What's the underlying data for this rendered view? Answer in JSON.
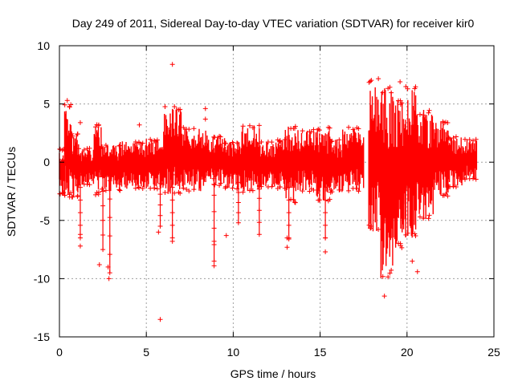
{
  "chart_data": {
    "type": "scatter",
    "title": "Day 249 of 2011, Sidereal Day-to-day VTEC variation (SDTVAR) for receiver kir0",
    "xlabel": "GPS time / hours",
    "ylabel": "SDTVAR / TECUs",
    "xlim": [
      0,
      25
    ],
    "ylim": [
      -15,
      10
    ],
    "xticks": [
      0,
      5,
      10,
      15,
      20,
      25
    ],
    "yticks": [
      -15,
      -10,
      -5,
      0,
      5,
      10
    ],
    "grid": true,
    "marker": "+",
    "color": "#ff0000",
    "series": [
      {
        "name": "SDTVAR",
        "bands": [
          {
            "x": [
              0.0,
              0.3
            ],
            "y": [
              -2.8,
              1.2
            ]
          },
          {
            "x": [
              0.3,
              0.7
            ],
            "y": [
              -3.0,
              5.0
            ]
          },
          {
            "x": [
              0.7,
              1.1
            ],
            "y": [
              -3.0,
              2.5
            ]
          },
          {
            "x": [
              1.1,
              2.0
            ],
            "y": [
              -2.0,
              1.2
            ]
          },
          {
            "x": [
              2.0,
              2.4
            ],
            "y": [
              -2.8,
              3.3
            ]
          },
          {
            "x": [
              2.4,
              3.5
            ],
            "y": [
              -2.5,
              1.5
            ]
          },
          {
            "x": [
              3.5,
              5.0
            ],
            "y": [
              -2.3,
              1.8
            ]
          },
          {
            "x": [
              5.0,
              6.0
            ],
            "y": [
              -2.3,
              2.0
            ]
          },
          {
            "x": [
              6.0,
              7.0
            ],
            "y": [
              -2.8,
              4.8
            ]
          },
          {
            "x": [
              7.0,
              8.5
            ],
            "y": [
              -2.5,
              3.0
            ]
          },
          {
            "x": [
              8.5,
              9.5
            ],
            "y": [
              -2.0,
              2.3
            ]
          },
          {
            "x": [
              9.5,
              10.5
            ],
            "y": [
              -2.3,
              1.8
            ]
          },
          {
            "x": [
              10.5,
              11.5
            ],
            "y": [
              -2.6,
              3.2
            ]
          },
          {
            "x": [
              11.5,
              12.5
            ],
            "y": [
              -2.2,
              1.8
            ]
          },
          {
            "x": [
              12.5,
              13.0
            ],
            "y": [
              -2.3,
              2.0
            ]
          },
          {
            "x": [
              13.0,
              13.6
            ],
            "y": [
              -3.5,
              3.2
            ]
          },
          {
            "x": [
              13.6,
              14.8
            ],
            "y": [
              -2.5,
              2.8
            ]
          },
          {
            "x": [
              14.8,
              15.6
            ],
            "y": [
              -3.5,
              3.0
            ]
          },
          {
            "x": [
              15.6,
              16.3
            ],
            "y": [
              -2.6,
              2.0
            ]
          },
          {
            "x": [
              16.3,
              17.5
            ],
            "y": [
              -2.5,
              3.0
            ]
          },
          {
            "x": [
              17.8,
              18.5
            ],
            "y": [
              -6.0,
              7.2
            ]
          },
          {
            "x": [
              18.5,
              19.3
            ],
            "y": [
              -10.0,
              6.5
            ]
          },
          {
            "x": [
              19.3,
              19.8
            ],
            "y": [
              -7.5,
              5.5
            ]
          },
          {
            "x": [
              19.8,
              20.5
            ],
            "y": [
              -6.5,
              6.5
            ]
          },
          {
            "x": [
              20.5,
              21.5
            ],
            "y": [
              -5.0,
              4.5
            ]
          },
          {
            "x": [
              21.5,
              22.4
            ],
            "y": [
              -3.0,
              3.5
            ]
          },
          {
            "x": [
              22.4,
              23.2
            ],
            "y": [
              -2.2,
              2.2
            ]
          },
          {
            "x": [
              23.2,
              24.0
            ],
            "y": [
              -1.5,
              2.0
            ]
          }
        ],
        "outliers": [
          {
            "x": 0.45,
            "y": 5.3
          },
          {
            "x": 1.2,
            "y": 3.4
          },
          {
            "x": 1.2,
            "y": -6.2
          },
          {
            "x": 1.2,
            "y": -7.2
          },
          {
            "x": 2.3,
            "y": -8.8
          },
          {
            "x": 2.8,
            "y": -9.0
          },
          {
            "x": 2.85,
            "y": -10.0
          },
          {
            "x": 4.6,
            "y": 3.2
          },
          {
            "x": 5.8,
            "y": -13.5
          },
          {
            "x": 5.7,
            "y": -6.0
          },
          {
            "x": 6.5,
            "y": 8.4
          },
          {
            "x": 6.5,
            "y": -6.8
          },
          {
            "x": 8.4,
            "y": 4.6
          },
          {
            "x": 8.4,
            "y": 3.7
          },
          {
            "x": 8.9,
            "y": -8.9
          },
          {
            "x": 8.9,
            "y": -6.8
          },
          {
            "x": 9.6,
            "y": -6.3
          },
          {
            "x": 13.1,
            "y": -6.5
          },
          {
            "x": 13.1,
            "y": -7.3
          },
          {
            "x": 13.2,
            "y": -6.6
          },
          {
            "x": 15.3,
            "y": -7.7
          },
          {
            "x": 15.3,
            "y": -6.5
          },
          {
            "x": 18.7,
            "y": -11.5
          },
          {
            "x": 19.6,
            "y": 6.9
          },
          {
            "x": 20.3,
            "y": -8.5
          },
          {
            "x": 20.6,
            "y": -9.4
          }
        ],
        "spikes": [
          {
            "x": 2.5,
            "y": [
              -7.5,
              0
            ]
          },
          {
            "x": 2.9,
            "y": [
              -9.5,
              0
            ]
          },
          {
            "x": 5.8,
            "y": [
              -5.5,
              0
            ]
          },
          {
            "x": 6.5,
            "y": [
              -6.5,
              0
            ]
          },
          {
            "x": 8.9,
            "y": [
              -8.5,
              0
            ]
          },
          {
            "x": 11.5,
            "y": [
              -6.2,
              0
            ]
          },
          {
            "x": 13.2,
            "y": [
              -6.5,
              0
            ]
          },
          {
            "x": 15.3,
            "y": [
              -6.5,
              0
            ]
          },
          {
            "x": 1.2,
            "y": [
              -6.5,
              0
            ]
          },
          {
            "x": 10.3,
            "y": [
              -5.2,
              0
            ]
          }
        ]
      }
    ]
  }
}
